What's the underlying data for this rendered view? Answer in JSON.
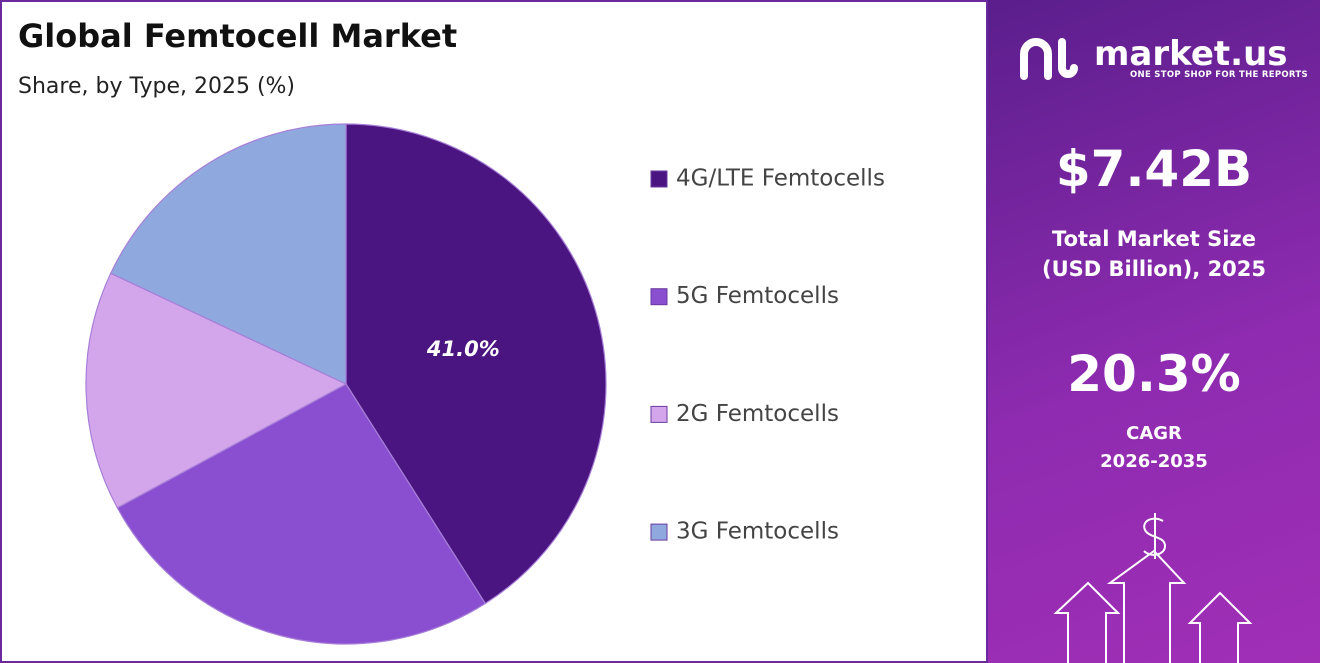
{
  "chart_data": {
    "type": "pie",
    "title": "Global Femtocell Market",
    "subtitle": "Share, by Type, 2025 (%)",
    "categories": [
      "4G/LTE Femtocells",
      "5G Femtocells",
      "2G Femtocells",
      "3G Femtocells"
    ],
    "values": [
      41.0,
      26.1,
      14.9,
      18.0
    ],
    "value_labels": [
      "41.0%",
      null,
      null,
      null
    ],
    "colors": [
      "#4a1580",
      "#8a4fd0",
      "#d3a6ec",
      "#8fa9de"
    ],
    "legend": "right"
  },
  "sidebar": {
    "logo": "market.us",
    "tagline": "ONE STOP SHOP FOR THE REPORTS",
    "market_size": "$7.42B",
    "market_size_label": [
      "Total Market Size",
      "(USD Billion), 2025"
    ],
    "cagr": "20.3%",
    "cagr_label": [
      "CAGR",
      "2026-2035"
    ]
  }
}
